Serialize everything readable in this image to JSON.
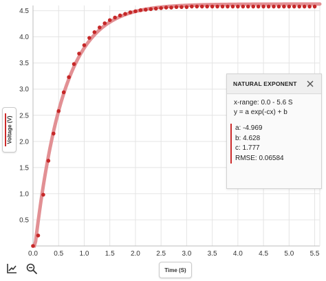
{
  "colors": {
    "point": "#c62828",
    "fit_line": "#e08a8e",
    "accent": "#cc2a2a"
  },
  "axes": {
    "x_label": "Time (S)",
    "y_label": "Voltage (V)"
  },
  "toolbar": {
    "icons": [
      "line-chart-icon",
      "zoom-icon"
    ]
  },
  "fit_panel": {
    "title": "NATURAL EXPONENT",
    "x_range": "x-range: 0.0 - 5.6 S",
    "equation": "y = a exp(-cx) + b",
    "param_a": "a: -4.969",
    "param_b": "b: 4.628",
    "param_c": "c: 1.777",
    "rmse": "RMSE: 0.06584"
  },
  "chart_data": {
    "type": "scatter",
    "title": "",
    "xlabel": "Time (S)",
    "ylabel": "Voltage (V)",
    "xlim": [
      0.0,
      5.6
    ],
    "ylim": [
      0.0,
      4.6
    ],
    "x_ticks": [
      "0.0",
      "0.5",
      "1.0",
      "1.5",
      "2.0",
      "2.5",
      "3.0",
      "3.5",
      "4.0",
      "4.5",
      "5.0",
      "5.5"
    ],
    "y_ticks": [
      "0.5",
      "1.0",
      "1.5",
      "2.0",
      "2.5",
      "3.0",
      "3.5",
      "4.0",
      "4.5"
    ],
    "grid": true,
    "series": [
      {
        "values": [
          [
            0.0,
            0.0
          ],
          [
            0.1,
            0.2
          ],
          [
            0.2,
            0.98
          ],
          [
            0.3,
            1.63
          ],
          [
            0.4,
            2.15
          ],
          [
            0.5,
            2.58
          ],
          [
            0.6,
            2.94
          ],
          [
            0.7,
            3.23
          ],
          [
            0.8,
            3.48
          ],
          [
            0.9,
            3.68
          ],
          [
            1.0,
            3.84
          ],
          [
            1.1,
            3.98
          ],
          [
            1.2,
            4.09
          ],
          [
            1.3,
            4.18
          ],
          [
            1.4,
            4.26
          ],
          [
            1.5,
            4.32
          ],
          [
            1.6,
            4.37
          ],
          [
            1.7,
            4.41
          ],
          [
            1.8,
            4.44
          ],
          [
            1.9,
            4.47
          ],
          [
            2.0,
            4.49
          ],
          [
            2.1,
            4.51
          ],
          [
            2.2,
            4.52
          ],
          [
            2.3,
            4.53
          ],
          [
            2.4,
            4.54
          ],
          [
            2.5,
            4.55
          ],
          [
            2.6,
            4.56
          ],
          [
            2.7,
            4.56
          ],
          [
            2.8,
            4.57
          ],
          [
            2.9,
            4.57
          ],
          [
            3.0,
            4.57
          ],
          [
            3.1,
            4.58
          ],
          [
            3.2,
            4.58
          ],
          [
            3.3,
            4.58
          ],
          [
            3.4,
            4.58
          ],
          [
            3.5,
            4.58
          ],
          [
            3.6,
            4.58
          ],
          [
            3.7,
            4.58
          ],
          [
            3.8,
            4.58
          ],
          [
            3.9,
            4.58
          ],
          [
            4.0,
            4.58
          ],
          [
            4.1,
            4.58
          ],
          [
            4.2,
            4.58
          ],
          [
            4.3,
            4.58
          ],
          [
            4.4,
            4.58
          ],
          [
            4.5,
            4.58
          ],
          [
            4.6,
            4.58
          ],
          [
            4.7,
            4.58
          ],
          [
            4.8,
            4.58
          ],
          [
            4.9,
            4.58
          ],
          [
            5.0,
            4.58
          ],
          [
            5.1,
            4.58
          ],
          [
            5.2,
            4.58
          ],
          [
            5.3,
            4.58
          ],
          [
            5.4,
            4.58
          ],
          [
            5.5,
            4.58
          ]
        ]
      }
    ],
    "fit": {
      "model": "y = a exp(-cx) + b",
      "a": -4.969,
      "b": 4.628,
      "c": 1.777,
      "x_range": [
        0.0,
        5.6
      ]
    }
  }
}
